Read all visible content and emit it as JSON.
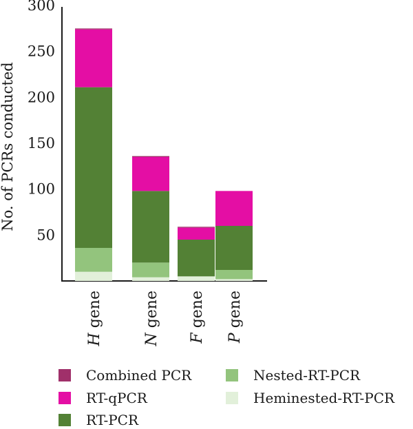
{
  "chart_data": {
    "type": "bar",
    "stacked": true,
    "title": "",
    "xlabel": "",
    "ylabel": "No. of PCRs conducted",
    "ylim": [
      0,
      300
    ],
    "yticks": [
      50,
      100,
      150,
      200,
      250,
      300
    ],
    "categories": [
      {
        "italic": "H",
        "rest": " gene"
      },
      {
        "italic": "N",
        "rest": " gene"
      },
      {
        "italic": "F",
        "rest": " gene"
      },
      {
        "italic": "P",
        "rest": " gene"
      }
    ],
    "series": [
      {
        "name": "Heminested-RT-PCR",
        "color": "#e2f0da",
        "values": [
          10,
          4,
          5,
          2
        ]
      },
      {
        "name": "Nested-RT-PCR",
        "color": "#93c47d",
        "values": [
          26,
          16,
          0,
          10
        ]
      },
      {
        "name": "RT-PCR",
        "color": "#538135",
        "values": [
          175,
          78,
          40,
          48
        ]
      },
      {
        "name": "RT-qPCR",
        "color": "#e40ea4",
        "values": [
          63,
          37,
          13,
          38
        ]
      },
      {
        "name": "Combined PCR",
        "color": "#a0306a",
        "values": [
          1,
          1,
          1,
          0
        ]
      }
    ],
    "legend": {
      "placement": "bottom",
      "items": [
        {
          "name": "Combined PCR",
          "color": "#a0306a"
        },
        {
          "name": "Nested-RT-PCR",
          "color": "#93c47d"
        },
        {
          "name": "RT-qPCR",
          "color": "#e40ea4"
        },
        {
          "name": "Heminested-RT-PCR",
          "color": "#e2f0da"
        },
        {
          "name": "RT-PCR",
          "color": "#538135"
        }
      ]
    },
    "grid": false
  }
}
